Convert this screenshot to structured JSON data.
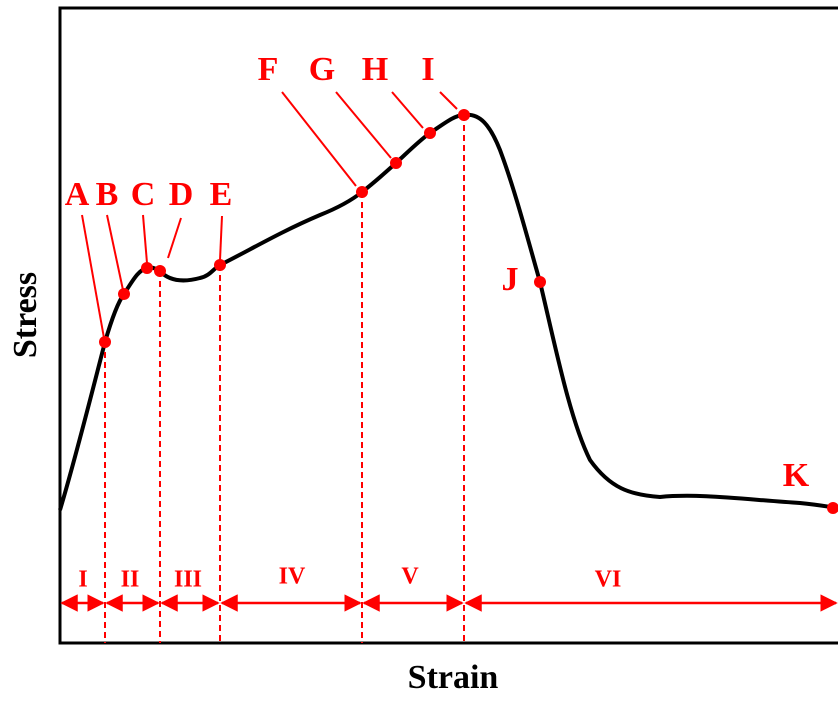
{
  "x_label": "Strain",
  "y_label": "Stress",
  "points": [
    {
      "label": "A"
    },
    {
      "label": "B"
    },
    {
      "label": "C"
    },
    {
      "label": "D"
    },
    {
      "label": "E"
    },
    {
      "label": "F"
    },
    {
      "label": "G"
    },
    {
      "label": "H"
    },
    {
      "label": "I"
    },
    {
      "label": "J"
    },
    {
      "label": "K"
    }
  ],
  "regions": [
    {
      "label": "I"
    },
    {
      "label": "II"
    },
    {
      "label": "III"
    },
    {
      "label": "IV"
    },
    {
      "label": "V"
    },
    {
      "label": "VI"
    }
  ]
}
